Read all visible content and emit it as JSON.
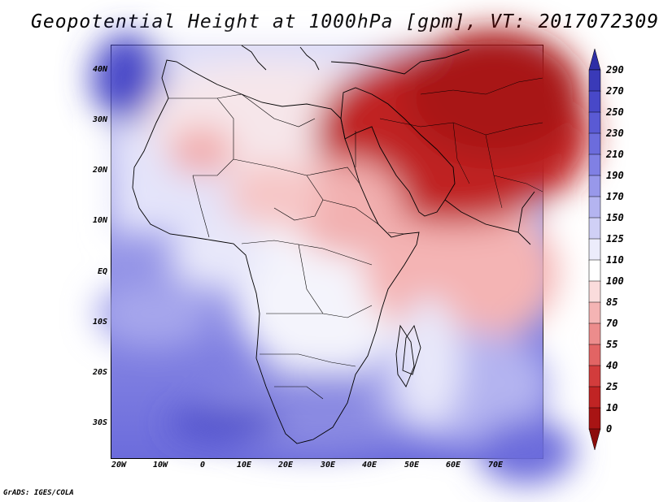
{
  "title": "Geopotential Height at 1000hPa [gpm], VT: 2017072309",
  "footer": "GrADS: IGES/COLA",
  "map": {
    "variable": "Geopotential Height",
    "level": "1000hPa",
    "units": "gpm",
    "valid_time": "2017072309",
    "region": "Africa, Middle East and South Asia",
    "lat_labels": [
      "40N",
      "30N",
      "20N",
      "10N",
      "EQ",
      "10S",
      "20S",
      "30S"
    ],
    "lon_labels": [
      "20W",
      "10W",
      "0",
      "10E",
      "20E",
      "30E",
      "40E",
      "50E",
      "60E",
      "70E"
    ]
  },
  "colorbar": {
    "labels": [
      "290",
      "270",
      "250",
      "230",
      "210",
      "190",
      "170",
      "150",
      "125",
      "110",
      "100",
      "85",
      "70",
      "55",
      "40",
      "25",
      "10",
      "0"
    ],
    "colors": [
      "#2e2ea6",
      "#3a3ab8",
      "#4848c8",
      "#5a5ad4",
      "#6c6cdc",
      "#8080e4",
      "#9898ea",
      "#b4b4f0",
      "#d0d0f6",
      "#ececfb",
      "#ffffff",
      "#fadcdc",
      "#f4b4b4",
      "#ec8c8c",
      "#e26464",
      "#d23c3c",
      "#c02424",
      "#a81414",
      "#8c0c0c"
    ]
  }
}
